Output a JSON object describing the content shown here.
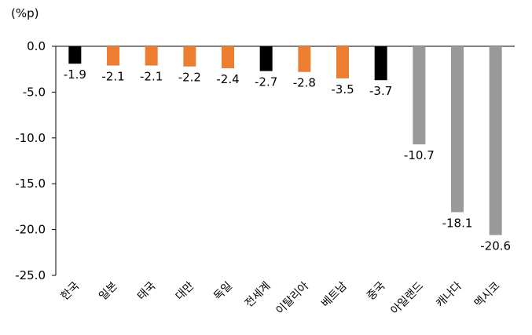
{
  "chart_data": {
    "type": "bar",
    "unit_label": "(%p)",
    "categories": [
      "한국",
      "일본",
      "태국",
      "대만",
      "독일",
      "전세계",
      "이탈리아",
      "베트남",
      "중국",
      "아일랜드",
      "캐나다",
      "멕시코"
    ],
    "values": [
      -1.9,
      -2.1,
      -2.1,
      -2.2,
      -2.4,
      -2.7,
      -2.8,
      -3.5,
      -3.7,
      -10.7,
      -18.1,
      -20.6
    ],
    "value_labels": [
      "-1.9",
      "-2.1",
      "-2.1",
      "-2.2",
      "-2.4",
      "-2.7",
      "-2.8",
      "-3.5",
      "-3.7",
      "-10.7",
      "-18.1",
      "-20.6"
    ],
    "bar_colors": [
      "#000000",
      "#ED7D31",
      "#ED7D31",
      "#ED7D31",
      "#ED7D31",
      "#000000",
      "#ED7D31",
      "#ED7D31",
      "#000000",
      "#999999",
      "#999999",
      "#999999"
    ],
    "ylim": [
      -25,
      0
    ],
    "yticks": [
      0,
      -5,
      -10,
      -15,
      -20,
      -25
    ],
    "ytick_labels": [
      "0.0",
      "-5.0",
      "-10.0",
      "-15.0",
      "-20.0",
      "-25.0"
    ],
    "grid": false,
    "legend": "none"
  }
}
